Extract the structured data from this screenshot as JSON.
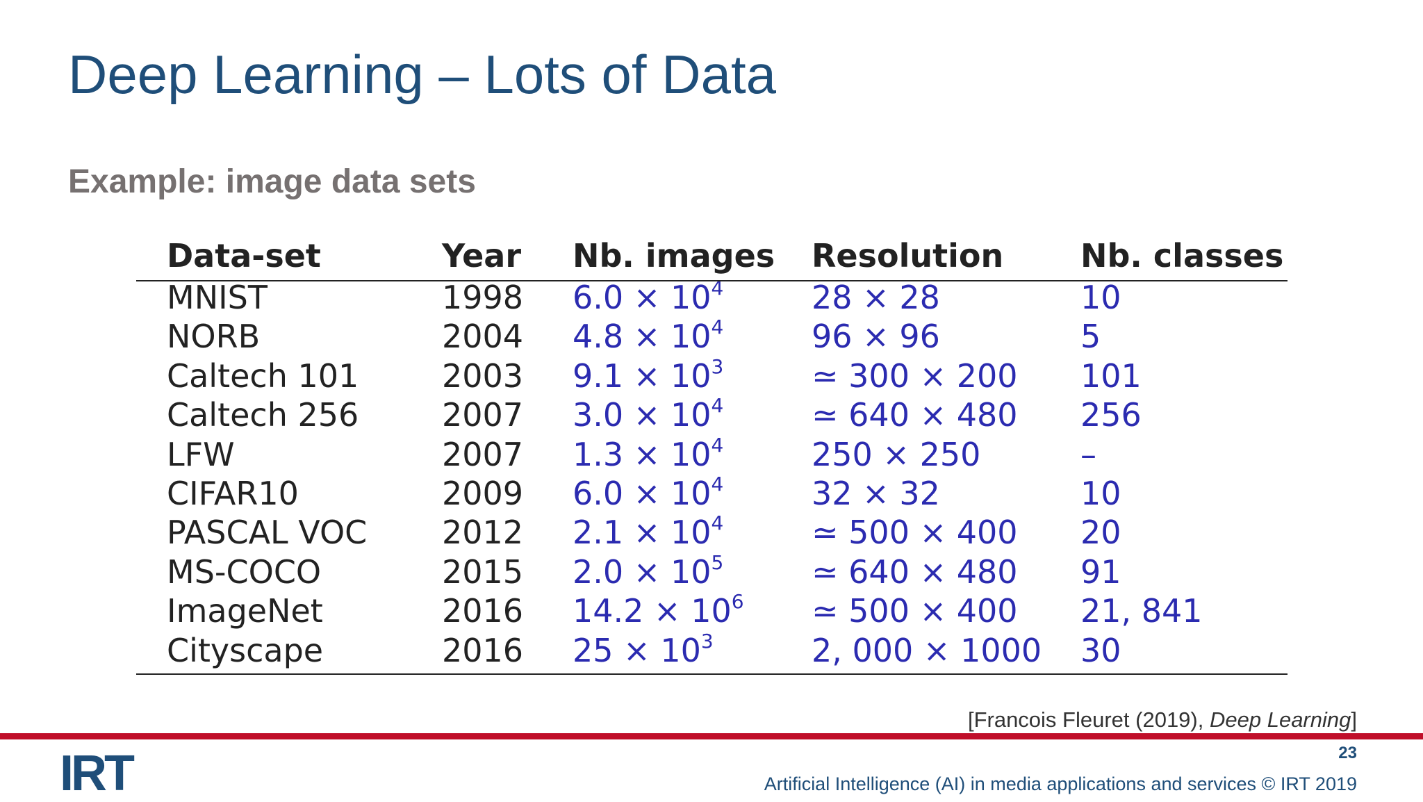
{
  "title": "Deep Learning – Lots of Data",
  "subtitle": "Example: image data sets",
  "table": {
    "header": [
      "Data-set",
      "Year",
      "Nb.  images",
      "Resolution",
      "Nb.  classes"
    ],
    "rows": [
      [
        "MNIST",
        "1998",
        {
          "base": "6.0 × 10",
          "exp": "4"
        },
        "28 × 28",
        "10"
      ],
      [
        "NORB",
        "2004",
        {
          "base": "4.8 × 10",
          "exp": "4"
        },
        "96 × 96",
        "5"
      ],
      [
        "Caltech 101",
        "2003",
        {
          "base": "9.1 × 10",
          "exp": "3"
        },
        "≃ 300 × 200",
        "101"
      ],
      [
        "Caltech 256",
        "2007",
        {
          "base": "3.0 × 10",
          "exp": "4"
        },
        "≃ 640 × 480",
        "256"
      ],
      [
        "LFW",
        "2007",
        {
          "base": "1.3 × 10",
          "exp": "4"
        },
        "250 × 250",
        "–"
      ],
      [
        "CIFAR10",
        "2009",
        {
          "base": "6.0 × 10",
          "exp": "4"
        },
        "32 × 32",
        "10"
      ],
      [
        "PASCAL VOC",
        "2012",
        {
          "base": "2.1 × 10",
          "exp": "4"
        },
        "≃ 500 × 400",
        "20"
      ],
      [
        "MS-COCO",
        "2015",
        {
          "base": "2.0 × 10",
          "exp": "5"
        },
        "≃ 640 × 480",
        "91"
      ],
      [
        "ImageNet",
        "2016",
        {
          "base": "14.2 × 10",
          "exp": "6"
        },
        "≃ 500 × 400",
        "21, 841"
      ],
      [
        "Cityscape",
        "2016",
        {
          "base": "25 × 10",
          "exp": "3"
        },
        "2, 000 × 1000",
        "30"
      ]
    ]
  },
  "citation": {
    "before": "[Francois Fleuret (2019), ",
    "title": "Deep Learning",
    "after": "]"
  },
  "page_number": "23",
  "footer": "Artificial Intelligence (AI) in media applications and services © IRT 2019",
  "logo": "IRT"
}
